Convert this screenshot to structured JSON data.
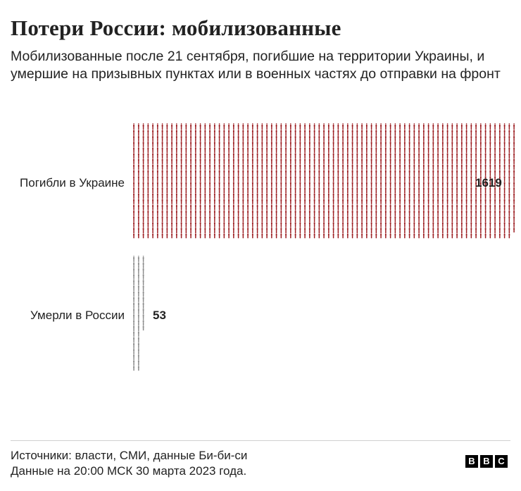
{
  "header": {
    "title": "Потери России: мобилизованные",
    "subtitle": "Мобилизованные после 21 сентября, погибшие на территории Украины, и умершие на призывных пунктах или в военных частях до отправки на фронт"
  },
  "footer": {
    "sources": "Источники: власти, СМИ, данные Би-би-си",
    "date": "Данные на 20:00 МСК 30 марта 2023 года."
  },
  "logo": {
    "letters": [
      "B",
      "B",
      "C"
    ]
  },
  "colors": {
    "killed": "#9b1b1f",
    "died": "#8a8a8a"
  },
  "chart_data": {
    "type": "bar",
    "categories": [
      "Погибли в Украине",
      "Умерли в России"
    ],
    "values": [
      1619,
      53
    ],
    "value_labels": [
      "1619",
      "53"
    ],
    "title": "Потери России: мобилизованные",
    "xlabel": "",
    "ylabel": ""
  }
}
